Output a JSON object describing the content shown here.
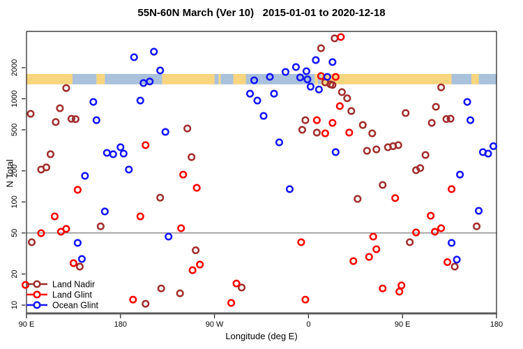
{
  "title": "55N-60N March (Ver 10)   2015-01-01 to 2020-12-18",
  "axes": {
    "x": {
      "label": "Longitude (deg E)",
      "range": [
        90,
        540
      ],
      "ticks": [
        {
          "lon": 90,
          "label": "90 E"
        },
        {
          "lon": 180,
          "label": "180"
        },
        {
          "lon": 270,
          "label": "90 W"
        },
        {
          "lon": 360,
          "label": "0"
        },
        {
          "lon": 450,
          "label": "90 E"
        },
        {
          "lon": 540,
          "label": "180"
        }
      ]
    },
    "y": {
      "label": "N Total",
      "scale": "log",
      "ticks": [
        10,
        20,
        50,
        100,
        200,
        500,
        1000,
        2000
      ]
    }
  },
  "reference_line": {
    "value": 50,
    "color": "#7a7a7a"
  },
  "map_band": {
    "top_value": 1740,
    "bottom_value": 1380,
    "land_color": "#F8D57E",
    "ocean_color": "#A9C1DB",
    "segments": [
      [
        90,
        134,
        "land"
      ],
      [
        134,
        157,
        "ocean"
      ],
      [
        157,
        165,
        "land"
      ],
      [
        165,
        220,
        "ocean"
      ],
      [
        220,
        270,
        "land"
      ],
      [
        270,
        274,
        "ocean"
      ],
      [
        274,
        276,
        "land"
      ],
      [
        276,
        288,
        "ocean"
      ],
      [
        288,
        300,
        "land"
      ],
      [
        300,
        366,
        "ocean"
      ],
      [
        366,
        369,
        "land"
      ],
      [
        369,
        372,
        "ocean"
      ],
      [
        372,
        497,
        "land"
      ],
      [
        497,
        516,
        "ocean"
      ],
      [
        516,
        523,
        "land"
      ],
      [
        523,
        540,
        "ocean"
      ]
    ]
  },
  "legend": {
    "items": [
      {
        "label": "Land Nadir",
        "color": "#A02E2E"
      },
      {
        "label": "Land Glint",
        "color": "#FF0000"
      },
      {
        "label": "Ocean Glint",
        "color": "#1414FF"
      }
    ]
  },
  "chart_data": {
    "type": "scatter",
    "x_axis": "Longitude (deg E), wrapping 90E through 180, 90W, 0, 90E to 180",
    "y_axis": "N Total (log scale)",
    "series": [
      {
        "name": "Land Nadir",
        "color": "#A02E2E",
        "points": [
          [
            128,
            1270
          ],
          [
            122,
            810
          ],
          [
            94,
            715
          ],
          [
            118,
            595
          ],
          [
            133,
            640
          ],
          [
            137,
            635
          ],
          [
            113,
            290
          ],
          [
            104,
            206
          ],
          [
            109,
            216
          ],
          [
            244,
            515
          ],
          [
            248,
            272
          ],
          [
            252,
            34
          ],
          [
            296,
            14.8
          ],
          [
            218,
            110
          ],
          [
            161,
            58
          ],
          [
            141,
            23.6
          ],
          [
            219,
            14.5
          ],
          [
            204,
            10.3
          ],
          [
            237,
            13
          ],
          [
            95,
            40.7
          ],
          [
            385,
            3850
          ],
          [
            372,
            3090
          ],
          [
            383,
            1360
          ],
          [
            392,
            1160
          ],
          [
            397,
            1010
          ],
          [
            401,
            760
          ],
          [
            376,
            1440
          ],
          [
            381,
            1380
          ],
          [
            357,
            620
          ],
          [
            354,
            500
          ],
          [
            368,
            470
          ],
          [
            412,
            557
          ],
          [
            421,
            462
          ],
          [
            431,
            146
          ],
          [
            407,
            107
          ],
          [
            425,
            323
          ],
          [
            416,
            313
          ],
          [
            436,
            339
          ],
          [
            441,
            347
          ],
          [
            446,
            355
          ],
          [
            472,
            285
          ],
          [
            463,
            203
          ],
          [
            467,
            213
          ],
          [
            487,
            1290
          ],
          [
            482,
            836
          ],
          [
            453,
            727
          ],
          [
            478,
            584
          ],
          [
            492,
            636
          ],
          [
            496,
            641
          ],
          [
            457,
            40.7
          ],
          [
            500,
            23.6
          ],
          [
            521,
            58
          ]
        ]
      },
      {
        "name": "Land Glint",
        "color": "#FF0000",
        "points": [
          [
            204,
            355
          ],
          [
            240,
            184
          ],
          [
            253,
            137
          ],
          [
            238,
            55.6
          ],
          [
            353,
            40.7
          ],
          [
            256,
            24.7
          ],
          [
            249,
            21.8
          ],
          [
            291,
            16.2
          ],
          [
            286,
            10.5
          ],
          [
            357,
            11.3
          ],
          [
            192,
            11.3
          ],
          [
            139,
            131
          ],
          [
            117,
            72.4
          ],
          [
            104,
            49.8
          ],
          [
            123,
            51.4
          ],
          [
            128,
            54.8
          ],
          [
            135,
            25.5
          ],
          [
            199,
            72.4
          ],
          [
            372,
            1660
          ],
          [
            386,
            1630
          ],
          [
            390,
            849
          ],
          [
            399,
            470
          ],
          [
            368,
            620
          ],
          [
            383,
            584
          ],
          [
            376,
            462
          ],
          [
            391,
            3970
          ],
          [
            497,
            133
          ],
          [
            443,
            109
          ],
          [
            477,
            73.5
          ],
          [
            463,
            50.6
          ],
          [
            481,
            51.4
          ],
          [
            487,
            55.6
          ],
          [
            422,
            46.1
          ],
          [
            425,
            34.8
          ],
          [
            418,
            29.3
          ],
          [
            403,
            26.7
          ],
          [
            493,
            26.1
          ],
          [
            431,
            14.5
          ],
          [
            449,
            15.5
          ],
          [
            447,
            13.5
          ],
          [
            89,
            15.7
          ]
        ]
      },
      {
        "name": "Ocean Glint",
        "color": "#1414FF",
        "points": [
          [
            193,
            2530
          ],
          [
            212,
            2860
          ],
          [
            218,
            1880
          ],
          [
            202,
            1420
          ],
          [
            208,
            1470
          ],
          [
            154,
            932
          ],
          [
            199,
            961
          ],
          [
            157,
            620
          ],
          [
            223,
            477
          ],
          [
            167,
            299
          ],
          [
            173,
            290
          ],
          [
            183,
            294
          ],
          [
            180,
            339
          ],
          [
            188,
            206
          ],
          [
            146,
            179
          ],
          [
            165,
            80.8
          ],
          [
            139,
            40.1
          ],
          [
            143,
            28
          ],
          [
            226,
            46.1
          ],
          [
            367,
            2370
          ],
          [
            383,
            2270
          ],
          [
            348,
            2030
          ],
          [
            358,
            1850
          ],
          [
            338,
            1820
          ],
          [
            323,
            1630
          ],
          [
            308,
            1510
          ],
          [
            352,
            1610
          ],
          [
            359,
            1540
          ],
          [
            362,
            1310
          ],
          [
            370,
            1230
          ],
          [
            378,
            1630
          ],
          [
            304,
            1120
          ],
          [
            311,
            961
          ],
          [
            327,
            1120
          ],
          [
            317,
            682
          ],
          [
            332,
            378
          ],
          [
            386,
            304
          ],
          [
            342,
            133
          ],
          [
            512,
            932
          ],
          [
            515,
            620
          ],
          [
            527,
            304
          ],
          [
            532,
            294
          ],
          [
            537,
            347
          ],
          [
            505,
            184
          ],
          [
            523,
            82
          ],
          [
            497,
            40.1
          ],
          [
            502,
            27.6
          ]
        ]
      }
    ]
  }
}
